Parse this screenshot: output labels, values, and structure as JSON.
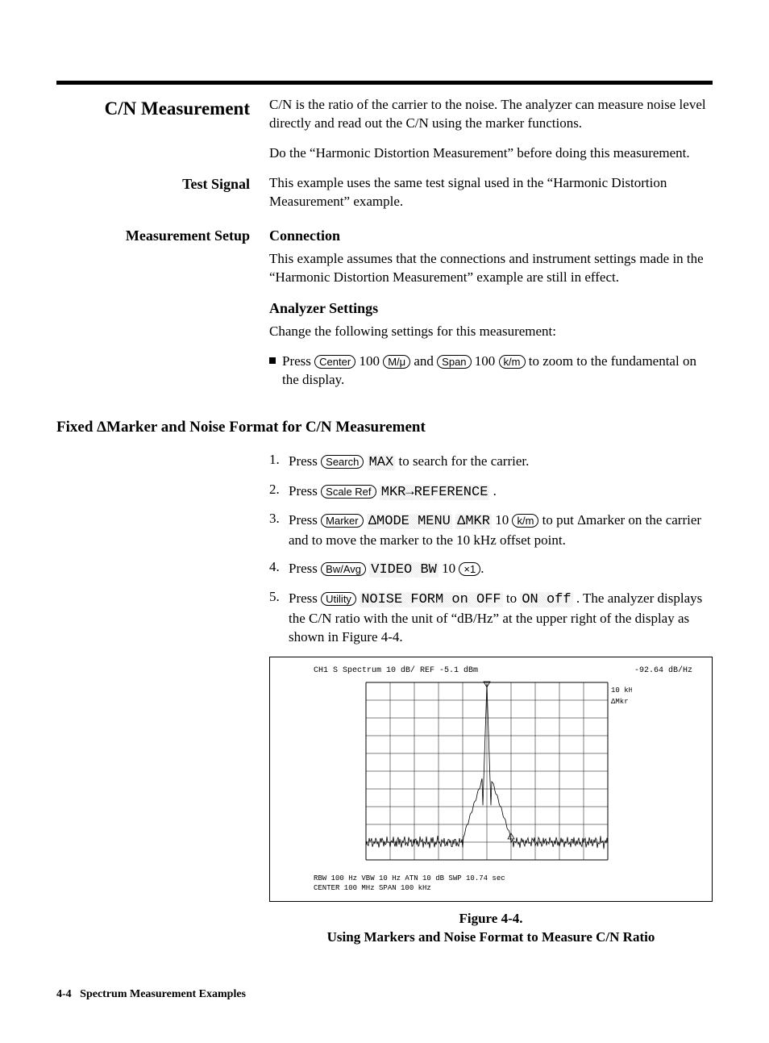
{
  "header": {
    "title": "C/N Measurement",
    "intro": "C/N is the ratio of the carrier to the noise. The analyzer can measure noise level directly and read out the C/N using the marker functions.",
    "prereq": "Do the “Harmonic Distortion Measurement” before doing this measurement."
  },
  "test_signal": {
    "label": "Test Signal",
    "text": "This example uses the same test signal used in the “Harmonic Distortion Measurement” example."
  },
  "meas_setup": {
    "label": "Measurement Setup",
    "connection_title": "Connection",
    "connection_text": "This example assumes that the connections and instrument settings made in the “Harmonic Distortion Measurement” example are still in effect.",
    "analyzer_title": "Analyzer Settings",
    "analyzer_intro": "Change the following settings for this measurement:",
    "bullet_pre": "Press ",
    "key_center": "Center",
    "bullet_100a": " 100 ",
    "key_m": "M/μ",
    "bullet_and": " and ",
    "key_span": "Span",
    "bullet_100b": " 100 ",
    "key_km": "k/m",
    "bullet_post": " to zoom to the fundamental on the display."
  },
  "fixed_marker_heading": "Fixed ΔMarker and Noise Format for C/N Measurement",
  "steps": {
    "s1_pre": "Press ",
    "s1_key": "Search",
    "s1_soft": "MAX",
    "s1_post": " to search for the carrier.",
    "s2_pre": "Press ",
    "s2_key": "Scale Ref",
    "s2_soft": "MKR→REFERENCE",
    "s2_post": " .",
    "s3_pre": "Press ",
    "s3_key": "Marker",
    "s3_soft1": "ΔMODE MENU",
    "s3_soft2": "ΔMKR",
    "s3_mid": " 10 ",
    "s3_key2": "k/m",
    "s3_post": " to put Δmarker on the carrier and to move the marker to the 10 kHz offset point.",
    "s4_pre": "Press ",
    "s4_key": "Bw/Avg",
    "s4_soft": "VIDEO BW",
    "s4_mid": " 10 ",
    "s4_key2": "×1",
    "s4_post": ".",
    "s5_pre": "Press ",
    "s5_key": "Utility",
    "s5_soft1": "NOISE FORM on OFF",
    "s5_to": " to ",
    "s5_soft2": "ON off",
    "s5_post": " . The analyzer displays the C/N ratio with the unit of “dB/Hz” at the upper right of the display as shown in Figure 4-4."
  },
  "figure": {
    "top_left": "CH1 S  Spectrum   10 dB/ REF -5.1 dBm",
    "top_right": "-92.64 dB/Hz",
    "marker_label": "10 kHz",
    "marker_lab2": "ΔMkr",
    "bottom_l1": "RBW 100 Hz   VBW 10 Hz     ATN  10 dB  SWP  10.74 sec",
    "bottom_l2": "CENTER  100 MHz                        SPAN  100 kHz",
    "grid_rows": 10,
    "grid_cols": 10,
    "grid_color": "#000000",
    "background": "#ffffff"
  },
  "caption": {
    "num": "Figure 4-4.",
    "text": "Using Markers and Noise Format to Measure C/N Ratio"
  },
  "footer": {
    "page": "4-4",
    "text": "Spectrum Measurement Examples"
  }
}
